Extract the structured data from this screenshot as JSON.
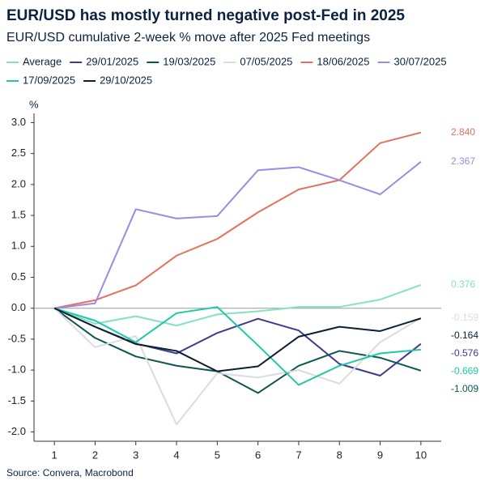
{
  "chart_data": {
    "type": "line",
    "title": "EUR/USD has mostly turned negative post-Fed in 2025",
    "subtitle": "EUR/USD cumulative 2-week % move after 2025 Fed meetings",
    "y_label": "%",
    "source": "Source: Convera, Macrobond",
    "x": [
      1,
      2,
      3,
      4,
      5,
      6,
      7,
      8,
      9,
      10
    ],
    "xlim": [
      0.5,
      10.5
    ],
    "xticks": [
      1,
      2,
      3,
      4,
      5,
      6,
      7,
      8,
      9,
      10
    ],
    "ylim": [
      -2.15,
      3.15
    ],
    "yticks": [
      {
        "value": 3,
        "label": "3.0"
      },
      2.5,
      {
        "value": 2,
        "label": "2.0"
      },
      1.5,
      {
        "value": 1,
        "label": "1.0"
      },
      0.5,
      {
        "value": 0,
        "label": "0.0"
      },
      -0.5,
      {
        "value": -1,
        "label": "-1.0"
      },
      -1.5,
      {
        "value": -2,
        "label": "-2.0"
      }
    ],
    "series": [
      {
        "name": "Average",
        "color": "#86e0c6",
        "values": [
          0,
          -0.25,
          -0.13,
          -0.28,
          -0.1,
          -0.05,
          0.02,
          0.02,
          0.14,
          0.376
        ],
        "value_labels": [
          null,
          null,
          null,
          null,
          null,
          null,
          null,
          null,
          null,
          "0.376"
        ]
      },
      {
        "name": "29/01/2025",
        "color": "#3f3a8f",
        "values": [
          0,
          -0.3,
          -0.57,
          -0.73,
          -0.4,
          -0.17,
          -0.36,
          -0.9,
          -1.09,
          -0.576
        ],
        "value_labels": [
          null,
          null,
          null,
          null,
          null,
          null,
          null,
          null,
          null,
          "-0.576"
        ]
      },
      {
        "name": "19/03/2025",
        "color": "#0e5552",
        "values": [
          0,
          -0.48,
          -0.78,
          -0.93,
          -1.02,
          -1.37,
          -0.93,
          -0.69,
          -0.8,
          -1.009
        ],
        "value_labels": [
          null,
          null,
          null,
          null,
          null,
          null,
          null,
          null,
          null,
          "-1.009"
        ]
      },
      {
        "name": "07/05/2025",
        "color": "#dcdcdc",
        "values": [
          0,
          -0.63,
          -0.45,
          -1.88,
          -1.05,
          -1.12,
          -1.0,
          -1.22,
          -0.55,
          -0.159
        ],
        "value_labels": [
          null,
          null,
          null,
          null,
          null,
          null,
          null,
          null,
          null,
          "-0.159"
        ]
      },
      {
        "name": "18/06/2025",
        "color": "#e5705f",
        "values": [
          0,
          0.13,
          0.37,
          0.85,
          1.12,
          1.55,
          1.92,
          2.07,
          2.67,
          2.84
        ],
        "value_labels": [
          null,
          null,
          null,
          null,
          null,
          null,
          null,
          null,
          null,
          "2.840"
        ]
      },
      {
        "name": "30/07/2025",
        "color": "#9d8ae2",
        "values": [
          0,
          0.08,
          1.6,
          1.45,
          1.49,
          2.23,
          2.28,
          2.07,
          1.84,
          2.367
        ],
        "value_labels": [
          null,
          null,
          null,
          null,
          null,
          null,
          null,
          null,
          null,
          "2.367"
        ]
      },
      {
        "name": "17/09/2025",
        "color": "#20c9a6",
        "values": [
          0,
          -0.2,
          -0.55,
          -0.08,
          0.02,
          -0.6,
          -1.24,
          -0.93,
          -0.73,
          -0.669
        ],
        "value_labels": [
          null,
          null,
          null,
          null,
          null,
          null,
          null,
          null,
          null,
          "-0.669"
        ]
      },
      {
        "name": "29/10/2025",
        "color": "#0b2030",
        "values": [
          0,
          -0.3,
          -0.58,
          -0.69,
          -1.02,
          -0.94,
          -0.46,
          -0.3,
          -0.37,
          -0.164
        ],
        "value_labels": [
          null,
          null,
          null,
          null,
          null,
          null,
          null,
          null,
          null,
          "-0.164"
        ]
      }
    ]
  }
}
